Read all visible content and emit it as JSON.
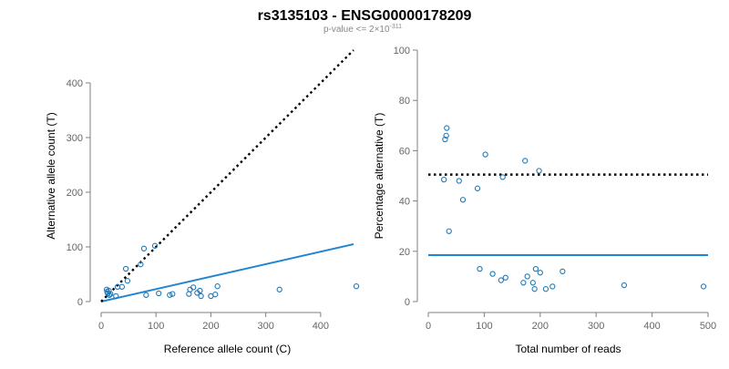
{
  "title": "rs3135103 - ENSG00000178209",
  "subtitle": {
    "prefix": "p-value <= 2",
    "times": "×",
    "base": "10",
    "exponent": "-311"
  },
  "colors": {
    "points": "#1f78b4",
    "fit_line": "#1f86d4",
    "reference_line": "#000000",
    "axis": "#7f7f7f",
    "tick_text": "#666666"
  },
  "chart_data": [
    {
      "type": "scatter",
      "xlabel": "Reference allele count (C)",
      "ylabel": "Alternative allele count (T)",
      "xlim": [
        0,
        460
      ],
      "ylim": [
        0,
        460
      ],
      "xticks": [
        0,
        100,
        200,
        300,
        400
      ],
      "yticks": [
        0,
        100,
        200,
        300,
        400
      ],
      "grid": false,
      "points": [
        {
          "x": 10,
          "y": 22
        },
        {
          "x": 11,
          "y": 18
        },
        {
          "x": 12,
          "y": 15
        },
        {
          "x": 14,
          "y": 20
        },
        {
          "x": 15,
          "y": 12
        },
        {
          "x": 17,
          "y": 14
        },
        {
          "x": 27,
          "y": 10
        },
        {
          "x": 30,
          "y": 27
        },
        {
          "x": 38,
          "y": 27
        },
        {
          "x": 45,
          "y": 60
        },
        {
          "x": 48,
          "y": 38
        },
        {
          "x": 72,
          "y": 68
        },
        {
          "x": 78,
          "y": 97
        },
        {
          "x": 82,
          "y": 12
        },
        {
          "x": 98,
          "y": 102
        },
        {
          "x": 105,
          "y": 15
        },
        {
          "x": 125,
          "y": 12
        },
        {
          "x": 130,
          "y": 14
        },
        {
          "x": 160,
          "y": 14
        },
        {
          "x": 162,
          "y": 22
        },
        {
          "x": 168,
          "y": 26
        },
        {
          "x": 175,
          "y": 16
        },
        {
          "x": 180,
          "y": 20
        },
        {
          "x": 182,
          "y": 10
        },
        {
          "x": 200,
          "y": 10
        },
        {
          "x": 208,
          "y": 13
        },
        {
          "x": 212,
          "y": 28
        },
        {
          "x": 325,
          "y": 22
        },
        {
          "x": 465,
          "y": 28
        }
      ],
      "lines": [
        {
          "style": "solid",
          "x": [
            0,
            460
          ],
          "y": [
            0,
            105
          ]
        },
        {
          "style": "dotted",
          "x": [
            0,
            460
          ],
          "y": [
            0,
            460
          ]
        }
      ]
    },
    {
      "type": "scatter",
      "xlabel": "Total number of reads",
      "ylabel": "Percentage alternative (T)",
      "xlim": [
        0,
        500
      ],
      "ylim": [
        0,
        100
      ],
      "xticks": [
        0,
        100,
        200,
        300,
        400,
        500
      ],
      "yticks": [
        0,
        20,
        40,
        60,
        80,
        100
      ],
      "grid": false,
      "points": [
        {
          "x": 28,
          "y": 48.5
        },
        {
          "x": 30,
          "y": 64.5
        },
        {
          "x": 32,
          "y": 66
        },
        {
          "x": 33,
          "y": 69
        },
        {
          "x": 37,
          "y": 28
        },
        {
          "x": 55,
          "y": 48
        },
        {
          "x": 62,
          "y": 40.5
        },
        {
          "x": 88,
          "y": 45
        },
        {
          "x": 92,
          "y": 13
        },
        {
          "x": 102,
          "y": 58.5
        },
        {
          "x": 115,
          "y": 11
        },
        {
          "x": 130,
          "y": 8.5
        },
        {
          "x": 133,
          "y": 49.5
        },
        {
          "x": 138,
          "y": 9.5
        },
        {
          "x": 170,
          "y": 7.5
        },
        {
          "x": 173,
          "y": 56
        },
        {
          "x": 177,
          "y": 10
        },
        {
          "x": 187,
          "y": 7.5
        },
        {
          "x": 190,
          "y": 5
        },
        {
          "x": 192,
          "y": 13
        },
        {
          "x": 198,
          "y": 52
        },
        {
          "x": 200,
          "y": 11.5
        },
        {
          "x": 210,
          "y": 5
        },
        {
          "x": 222,
          "y": 6
        },
        {
          "x": 240,
          "y": 12
        },
        {
          "x": 350,
          "y": 6.5
        },
        {
          "x": 492,
          "y": 6
        }
      ],
      "lines": [
        {
          "style": "solid",
          "x": [
            0,
            500
          ],
          "y": [
            18.5,
            18.5
          ]
        },
        {
          "style": "dotted",
          "x": [
            0,
            500
          ],
          "y": [
            50.5,
            50.5
          ]
        }
      ]
    }
  ]
}
